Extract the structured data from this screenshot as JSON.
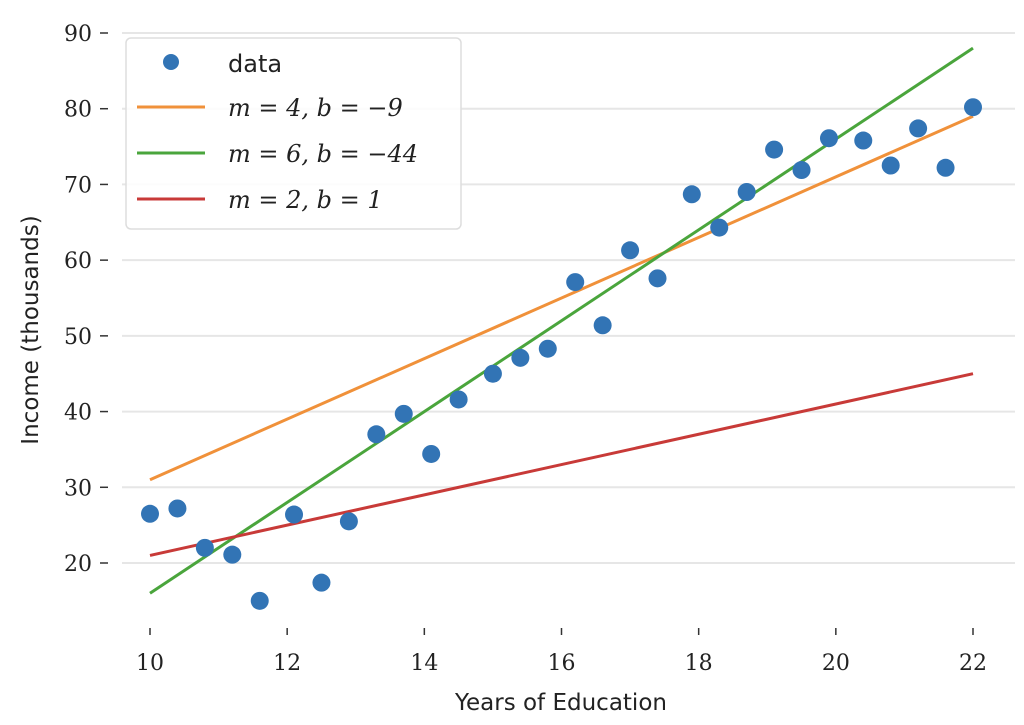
{
  "chart_data": {
    "type": "scatter",
    "title": "",
    "xlabel": "Years of Education",
    "ylabel": "Income (thousands)",
    "xlim": [
      10,
      22
    ],
    "ylim": [
      12,
      90
    ],
    "x_ticks": [
      10,
      12,
      14,
      16,
      18,
      20,
      22
    ],
    "y_ticks": [
      20,
      30,
      40,
      50,
      60,
      70,
      80,
      90
    ],
    "grid": "horizontal",
    "legend_position": "top-left",
    "series": [
      {
        "name": "data",
        "kind": "scatter",
        "color": "#3274b5",
        "x": [
          10.0,
          10.4,
          10.8,
          11.2,
          11.6,
          12.1,
          12.5,
          12.9,
          13.3,
          13.7,
          14.1,
          14.5,
          15.0,
          15.4,
          15.8,
          16.2,
          16.6,
          17.0,
          17.4,
          17.9,
          18.3,
          18.7,
          19.1,
          19.5,
          19.9,
          20.4,
          20.8,
          21.2,
          21.6,
          22.0
        ],
        "y": [
          26.5,
          27.2,
          22.0,
          21.1,
          15.0,
          26.4,
          17.4,
          25.5,
          37.0,
          39.7,
          34.4,
          41.6,
          45.0,
          47.1,
          48.3,
          57.1,
          51.4,
          61.3,
          57.6,
          68.7,
          64.3,
          69.0,
          74.6,
          71.9,
          76.1,
          75.8,
          72.5,
          77.4,
          72.2,
          80.2
        ]
      },
      {
        "name": "m = 4, b = −9",
        "kind": "line",
        "color": "#f0913a",
        "m": 4,
        "b": -9,
        "x": [
          10,
          22
        ],
        "y": [
          31,
          79
        ]
      },
      {
        "name": "m = 6, b = −44",
        "kind": "line",
        "color": "#4aa53c",
        "m": 6,
        "b": -44,
        "x": [
          10,
          22
        ],
        "y": [
          16,
          88
        ]
      },
      {
        "name": "m = 2, b = 1",
        "kind": "line",
        "color": "#c83a38",
        "m": 2,
        "b": 1,
        "x": [
          10,
          22
        ],
        "y": [
          21,
          45
        ]
      }
    ]
  }
}
